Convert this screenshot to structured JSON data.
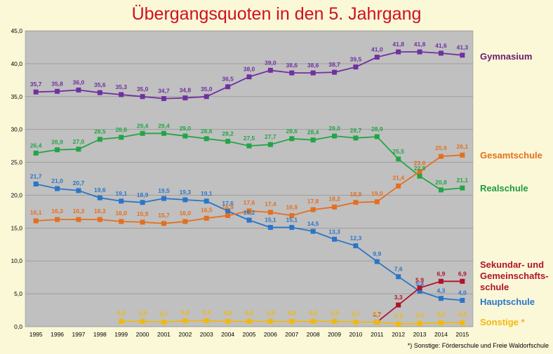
{
  "title": "Übergangsquoten in den 5. Jahrgang",
  "footnote": "*) Sonstige: Förderschule und Freie Waldorfschule",
  "chart_data": {
    "type": "line",
    "title": "Übergangsquoten in den 5. Jahrgang",
    "xlabel": "",
    "ylabel": "",
    "ylim": [
      0,
      45
    ],
    "yticks": [
      "0,0",
      "5,0",
      "10,0",
      "15,0",
      "20,0",
      "25,0",
      "30,0",
      "35,0",
      "40,0",
      "45,0"
    ],
    "grid": true,
    "legend_placement": "right",
    "categories": [
      "1995",
      "1996",
      "1997",
      "1998",
      "1999",
      "2000",
      "2001",
      "2002",
      "2003",
      "2004",
      "2005",
      "2006",
      "2007",
      "2008",
      "2009",
      "2010",
      "2011",
      "2012",
      "2013",
      "2014",
      "2015"
    ],
    "series": [
      {
        "name": "Gymnasium",
        "color": "#7030a0",
        "labels": [
          "35,7",
          "35,8",
          "36,0",
          "35,6",
          "35,3",
          "35,0",
          "34,7",
          "34,8",
          "35,0",
          "36,5",
          "38,0",
          "39,0",
          "38,6",
          "38,6",
          "38,7",
          "39,5",
          "41,0",
          "41,8",
          "41,8",
          "41,6",
          "41,3"
        ],
        "values": [
          35.7,
          35.8,
          36.0,
          35.6,
          35.3,
          35.0,
          34.7,
          34.8,
          35.0,
          36.5,
          38.0,
          39.0,
          38.6,
          38.6,
          38.7,
          39.5,
          41.0,
          41.8,
          41.8,
          41.6,
          41.3
        ]
      },
      {
        "name": "Realschule",
        "color": "#22a546",
        "labels": [
          "26,4",
          "26,9",
          "27,0",
          "28,5",
          "28,8",
          "29,4",
          "29,4",
          "29,0",
          "28,6",
          "28,2",
          "27,5",
          "27,7",
          "28,6",
          "28,4",
          "29,0",
          "28,7",
          "28,9",
          "25,5",
          "22,9",
          "20,8",
          "21,1"
        ],
        "values": [
          26.4,
          26.9,
          27.0,
          28.5,
          28.8,
          29.4,
          29.4,
          29.0,
          28.6,
          28.2,
          27.5,
          27.7,
          28.6,
          28.4,
          29.0,
          28.7,
          28.9,
          25.5,
          22.9,
          20.8,
          21.1
        ]
      },
      {
        "name": "Hauptschule",
        "color": "#2a75c8",
        "labels": [
          "21,7",
          "21,0",
          "20,7",
          "19,6",
          "19,1",
          "18,9",
          "19,5",
          "19,3",
          "19,1",
          "17,6",
          "16,2",
          "15,1",
          "15,1",
          "14,5",
          "13,3",
          "12,3",
          "9,9",
          "7,6",
          "5,4",
          "4,3",
          "4,0"
        ],
        "values": [
          21.7,
          21.0,
          20.7,
          19.6,
          19.1,
          18.9,
          19.5,
          19.3,
          19.1,
          17.6,
          16.2,
          15.1,
          15.1,
          14.5,
          13.3,
          12.3,
          9.9,
          7.6,
          5.4,
          4.3,
          4.0
        ]
      },
      {
        "name": "Gesamtschule",
        "color": "#e56f1e",
        "labels": [
          "16,1",
          "16,3",
          "16,3",
          "16,3",
          "16,0",
          "15,9",
          "15,7",
          "16,0",
          "16,5",
          "16,9",
          "17,6",
          "17,4",
          "16,9",
          "17,8",
          "18,2",
          "18,9",
          "19,0",
          "21,4",
          "23,6",
          "25,9",
          "26,1"
        ],
        "values": [
          16.1,
          16.3,
          16.3,
          16.3,
          16.0,
          15.9,
          15.7,
          16.0,
          16.5,
          16.9,
          17.6,
          17.4,
          16.9,
          17.8,
          18.2,
          18.9,
          19.0,
          21.4,
          23.6,
          25.9,
          26.1
        ]
      },
      {
        "name": "Sekundar- und Gemeinschafts-schule",
        "color": "#b0122a",
        "labels": [
          null,
          null,
          null,
          null,
          null,
          null,
          null,
          null,
          null,
          null,
          null,
          null,
          null,
          null,
          null,
          null,
          "0,7",
          "3,3",
          "5,9",
          "6,9",
          "6,9"
        ],
        "values": [
          null,
          null,
          null,
          null,
          null,
          null,
          null,
          null,
          null,
          null,
          null,
          null,
          null,
          null,
          null,
          null,
          0.7,
          3.3,
          5.9,
          6.9,
          6.9
        ]
      },
      {
        "name": "Sonstige *",
        "color": "#f2b90c",
        "labels": [
          null,
          null,
          null,
          null,
          "0,8",
          "0,8",
          "0,7",
          "0,9",
          "0,9",
          "0,8",
          "0,8",
          "0,8",
          "0,8",
          "0,8",
          "0,8",
          "0,7",
          "0,7",
          "0,4",
          "0,5",
          "0,6",
          "0,6"
        ],
        "values": [
          null,
          null,
          null,
          null,
          0.8,
          0.8,
          0.7,
          0.9,
          0.9,
          0.8,
          0.8,
          0.8,
          0.8,
          0.8,
          0.8,
          0.7,
          0.7,
          0.4,
          0.5,
          0.6,
          0.6
        ]
      }
    ]
  },
  "legend": [
    {
      "lines": [
        "Gymnasium"
      ],
      "color": "#6a1a6e"
    },
    {
      "lines": [
        "Gesamtschule"
      ],
      "color": "#e56f1e"
    },
    {
      "lines": [
        "Realschule"
      ],
      "color": "#1e9a44"
    },
    {
      "lines": [
        "Sekundar- und",
        "Gemeinschafts-",
        "schule"
      ],
      "color": "#b0122a"
    },
    {
      "lines": [
        "Hauptschule"
      ],
      "color": "#2a75c8"
    },
    {
      "lines": [
        "Sonstige *"
      ],
      "color": "#f2b90c"
    }
  ]
}
